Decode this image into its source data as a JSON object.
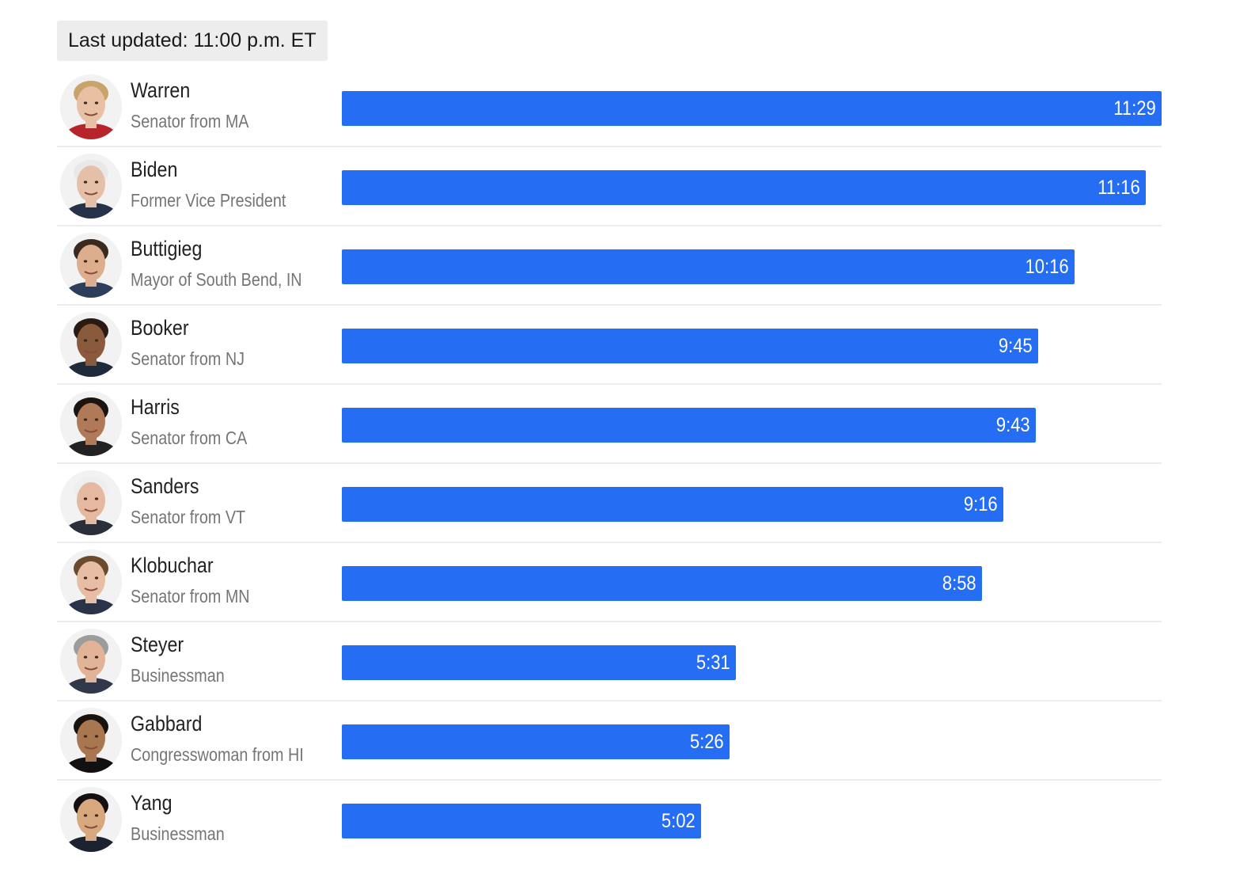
{
  "header": {
    "last_updated": "Last updated: 11:00 p.m. ET"
  },
  "colors": {
    "bar": "#256df2",
    "bar_text": "#ffffff",
    "name_text": "#222222",
    "title_text": "#757575",
    "divider": "#ececec",
    "updated_bg": "#ededed"
  },
  "chart_data": {
    "type": "bar",
    "orientation": "horizontal",
    "value_unit": "minutes:seconds of speaking time",
    "grid": false,
    "legend": "none",
    "xlim": [
      0,
      689
    ],
    "categories": [
      "Warren",
      "Biden",
      "Buttigieg",
      "Booker",
      "Harris",
      "Sanders",
      "Klobuchar",
      "Steyer",
      "Gabbard",
      "Yang"
    ],
    "subtitles": [
      "Senator from MA",
      "Former Vice President",
      "Mayor of South Bend, IN",
      "Senator from NJ",
      "Senator from CA",
      "Senator from VT",
      "Senator from MN",
      "Businessman",
      "Congresswoman from HI",
      "Businessman"
    ],
    "data_labels": [
      "11:29",
      "11:16",
      "10:16",
      "9:45",
      "9:43",
      "9:16",
      "8:58",
      "5:31",
      "5:26",
      "5:02"
    ],
    "values_seconds": [
      689,
      676,
      616,
      585,
      583,
      556,
      538,
      331,
      326,
      302
    ]
  }
}
